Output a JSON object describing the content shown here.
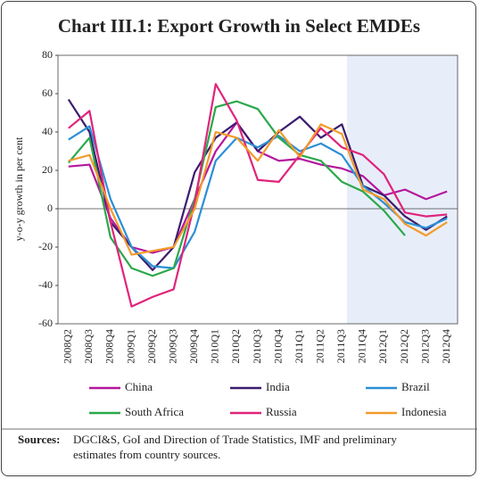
{
  "chart_data": {
    "type": "line",
    "title": "Chart III.1: Export Growth in Select EMDEs",
    "y_label": "y-o-y growth in per cent",
    "categories": [
      "2008Q2",
      "2008Q3",
      "2008Q4",
      "2009Q1",
      "2009Q2",
      "2009Q3",
      "2009Q4",
      "2010Q1",
      "2010Q2",
      "2010Q3",
      "2010Q4",
      "2011Q1",
      "2011Q2",
      "2011Q3",
      "2011Q4",
      "2012Q1",
      "2012Q2",
      "2012Q3",
      "2012Q4"
    ],
    "series": [
      {
        "name": "China",
        "color": "#b5179e",
        "values": [
          22,
          23,
          -5,
          -20,
          -23,
          -20,
          5,
          30,
          45,
          30,
          25,
          26,
          23,
          21,
          17,
          7,
          10,
          5,
          9
        ]
      },
      {
        "name": "India",
        "color": "#3b1c6e",
        "values": [
          57,
          40,
          -7,
          -20,
          -32,
          -20,
          19,
          37,
          45,
          30,
          40,
          48,
          37,
          44,
          12,
          7,
          -4,
          -11,
          -4
        ]
      },
      {
        "name": "Brazil",
        "color": "#2b8fd6",
        "values": [
          36,
          43,
          5,
          -20,
          -30,
          -31,
          -12,
          25,
          37,
          32,
          38,
          30,
          34,
          28,
          12,
          3,
          -7,
          -10,
          -5
        ]
      },
      {
        "name": "South Africa",
        "color": "#2aa84a",
        "values": [
          24,
          37,
          -15,
          -31,
          -35,
          -31,
          5,
          53,
          56,
          52,
          37,
          28,
          25,
          14,
          9,
          -1,
          -14,
          null,
          null
        ]
      },
      {
        "name": "Russia",
        "color": "#e0247b",
        "values": [
          42,
          51,
          -7,
          -51,
          -46,
          -42,
          3,
          65,
          46,
          15,
          14,
          28,
          42,
          32,
          28,
          18,
          -2,
          -4,
          -3
        ]
      },
      {
        "name": "Indonesia",
        "color": "#f39b2a",
        "values": [
          25,
          28,
          0,
          -24,
          -22,
          -20,
          0,
          40,
          37,
          25,
          41,
          27,
          44,
          39,
          10,
          5,
          -8,
          -14,
          -7
        ]
      }
    ],
    "ylim": [
      -60,
      80
    ],
    "yticks": [
      -60,
      -40,
      -20,
      0,
      20,
      40,
      60,
      80
    ],
    "note_label": "Sources:",
    "note": [
      "DGCI&S, GoI and Direction of Trade Statistics, IMF and preliminary",
      "estimates from country sources."
    ]
  }
}
